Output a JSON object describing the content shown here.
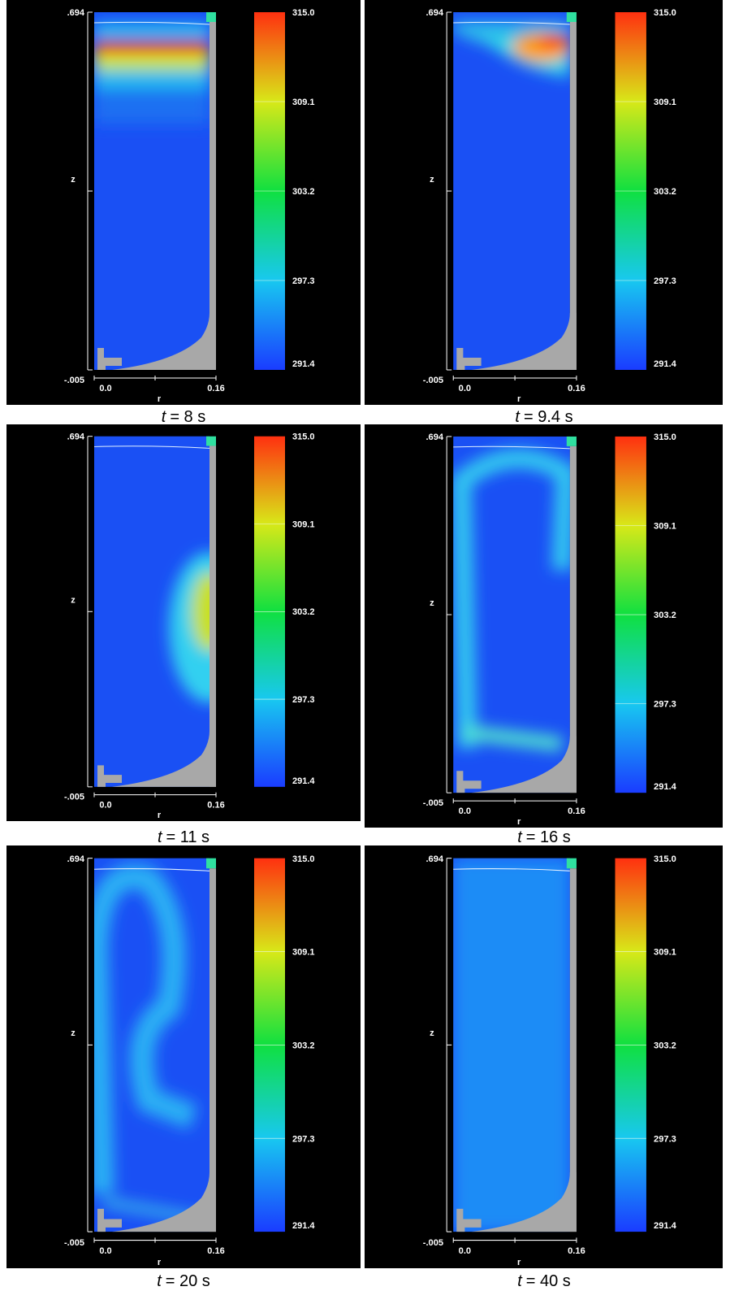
{
  "panels": [
    {
      "z_max": ".694",
      "z_min": "-.005",
      "z_label": "z",
      "r_label": "r",
      "r_ticks": [
        "0.0",
        "0.16"
      ],
      "colorbar_labels": [
        "315.0",
        "309.1",
        "303.2",
        "297.3",
        "291.4"
      ],
      "caption": {
        "symbol": "t",
        "text": "= 8 s"
      }
    },
    {
      "z_max": ".694",
      "z_min": "-.005",
      "z_label": "z",
      "r_label": "r",
      "r_ticks": [
        "0.0",
        "0.16"
      ],
      "colorbar_labels": [
        "315.0",
        "309.1",
        "303.2",
        "297.3",
        "291.4"
      ],
      "caption": {
        "symbol": "t",
        "text": "= 9.4 s"
      }
    },
    {
      "z_max": ".694",
      "z_min": "-.005",
      "z_label": "z",
      "r_label": "r",
      "r_ticks": [
        "0.0",
        "0.16"
      ],
      "colorbar_labels": [
        "315.0",
        "309.1",
        "303.2",
        "297.3",
        "291.4"
      ],
      "caption": {
        "symbol": "t",
        "text": "= 11 s"
      }
    },
    {
      "z_max": ".694",
      "z_min": "-.005",
      "z_label": "z",
      "r_label": "r",
      "r_ticks": [
        "0.0",
        "0.16"
      ],
      "colorbar_labels": [
        "315.0",
        "309.1",
        "303.2",
        "297.3",
        "291.4"
      ],
      "caption": {
        "symbol": "t",
        "text": "= 16 s"
      }
    },
    {
      "z_max": ".694",
      "z_min": "-.005",
      "z_label": "z",
      "r_label": "r",
      "r_ticks": [
        "0.0",
        "0.16"
      ],
      "colorbar_labels": [
        "315.0",
        "309.1",
        "303.2",
        "297.3",
        "291.4"
      ],
      "caption": {
        "symbol": "t",
        "text": "= 20 s"
      }
    },
    {
      "z_max": ".694",
      "z_min": "-.005",
      "z_label": "z",
      "r_label": "r",
      "r_ticks": [
        "0.0",
        "0.16"
      ],
      "colorbar_labels": [
        "315.0",
        "309.1",
        "303.2",
        "297.3",
        "291.4"
      ],
      "caption": {
        "symbol": "t",
        "text": "= 40 s"
      }
    }
  ]
}
